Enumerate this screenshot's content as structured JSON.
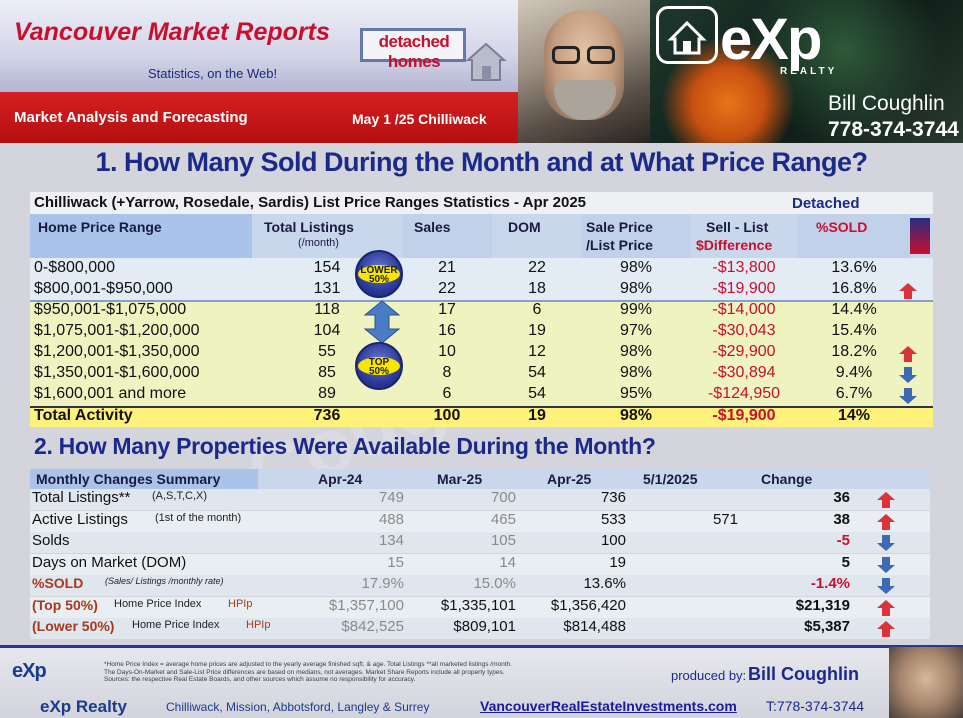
{
  "header": {
    "brand": "Vancouver Market Reports",
    "tagline": "Statistics, on the Web!",
    "category": "detached homes",
    "subtitle": "Market Analysis and Forecasting",
    "date": "May 1 /25",
    "area": "Chilliwack",
    "logo": "eXp",
    "logo_sub": "REALTY",
    "agent_name": "Bill Coughlin",
    "agent_phone": "778-374-3744"
  },
  "section1": {
    "heading": "1. How Many Sold During the Month and at What Price Range?",
    "table_title": "Chilliwack (+Yarrow, Rosedale, Sardis) List Price Ranges Statistics - Apr 2025",
    "table_tag": "Detached",
    "columns": {
      "range": "Home Price Range",
      "listings": "Total  Listings",
      "listings_sub": "(/month)",
      "sales": "Sales",
      "dom": "DOM",
      "ratio": "Sale Price",
      "ratio2": "/List Price",
      "diff": "Sell - List",
      "diff2": "$Difference",
      "pct": "%SOLD"
    },
    "rows": [
      {
        "range": "0-$800,000",
        "listings": "154",
        "sales": "21",
        "dom": "22",
        "ratio": "98%",
        "diff": "-$13,800",
        "pct": "13.6%"
      },
      {
        "range": "$800,001-$950,000",
        "listings": "131",
        "sales": "22",
        "dom": "18",
        "ratio": "98%",
        "diff": "-$19,900",
        "pct": "16.8%"
      },
      {
        "range": "$950,001-$1,075,000",
        "listings": "118",
        "sales": "17",
        "dom": "6",
        "ratio": "99%",
        "diff": "-$14,000",
        "pct": "14.4%"
      },
      {
        "range": "$1,075,001-$1,200,000",
        "listings": "104",
        "sales": "16",
        "dom": "19",
        "ratio": "97%",
        "diff": "-$30,043",
        "pct": "15.4%"
      },
      {
        "range": "$1,200,001-$1,350,000",
        "listings": "55",
        "sales": "10",
        "dom": "12",
        "ratio": "98%",
        "diff": "-$29,900",
        "pct": "18.2%"
      },
      {
        "range": "$1,350,001-$1,600,000",
        "listings": "85",
        "sales": "8",
        "dom": "54",
        "ratio": "98%",
        "diff": "-$30,894",
        "pct": "9.4%"
      },
      {
        "range": "$1,600,001 and more",
        "listings": "89",
        "sales": "6",
        "dom": "54",
        "ratio": "95%",
        "diff": "-$124,950",
        "pct": "6.7%"
      }
    ],
    "total": {
      "label": "Total Activity",
      "listings": "736",
      "sales": "100",
      "dom": "19",
      "ratio": "98%",
      "diff": "-$19,900",
      "pct": "14%"
    },
    "badge_lower_l1": "LOWER",
    "badge_lower_l2": "50%",
    "badge_top_l1": "TOP",
    "badge_top_l2": "50%"
  },
  "section2": {
    "heading": "2. How Many Properties Were Available During the Month?",
    "columns": {
      "label": "Monthly Changes Summary",
      "c1": "Apr-24",
      "c2": "Mar-25",
      "c3": "Apr-25",
      "c4": "5/1/2025",
      "c5": "Change"
    },
    "rows": [
      {
        "label": "Total Listings**",
        "note": "(A,S,T,C,X)",
        "c1": "749",
        "c2": "700",
        "c3": "736",
        "c4": "",
        "c5": "36",
        "dir": "up"
      },
      {
        "label": "Active Listings",
        "note": "(1st of the month)",
        "c1": "488",
        "c2": "465",
        "c3": "533",
        "c4": "571",
        "c5": "38",
        "dir": "up"
      },
      {
        "label": "Solds",
        "note": "",
        "c1": "134",
        "c2": "105",
        "c3": "100",
        "c4": "",
        "c5": "-5",
        "dir": "down"
      },
      {
        "label": "Days on Market (DOM)",
        "note": "",
        "c1": "15",
        "c2": "14",
        "c3": "19",
        "c4": "",
        "c5": "5",
        "dir": "down"
      },
      {
        "label": "%SOLD",
        "note": "(Sales/ Listings /monthly rate)",
        "c1": "17.9%",
        "c2": "15.0%",
        "c3": "13.6%",
        "c4": "",
        "c5": "-1.4%",
        "dir": "down"
      },
      {
        "label": "(Top 50%)",
        "note": "Home Price Index",
        "note2": "HPIp",
        "c1": "$1,357,100",
        "c2": "$1,335,101",
        "c3": "$1,356,420",
        "c4": "",
        "c5": "$21,319",
        "dir": "up"
      },
      {
        "label": "(Lower 50%)",
        "note": "Home Price Index",
        "note2": "HPIp",
        "c1": "$842,525",
        "c2": "$809,101",
        "c3": "$814,488",
        "c4": "",
        "c5": "$5,387",
        "dir": "up"
      }
    ]
  },
  "footer": {
    "note1": "*Home Price Index = average home prices are adjusted to the yearly average finished sqft. & age.  Total Listings **all marketed listings /month.",
    "note2": "The Days-On-Market and Sale-List Price differences are based on medians, not averages. Market Share Reports include all property types.",
    "note3": "Sources:  the respective Real Estate Boards, and other sources which assume no responsibility for accuracy.",
    "produced_by": "produced by:",
    "producer": "Bill Coughlin",
    "logo": "eXp",
    "realty": "eXp  Realty",
    "cities": "Chilliwack, Mission, Abbotsford, Langley & Surrey",
    "url": "VancouverRealEstateInvestments.com",
    "phone": "T:778-374-3744"
  },
  "colors": {
    "title_blue": "#1b2a8a",
    "red": "#c8102e",
    "arrow_up": "#d9343c",
    "arrow_down": "#3c6bb3"
  }
}
